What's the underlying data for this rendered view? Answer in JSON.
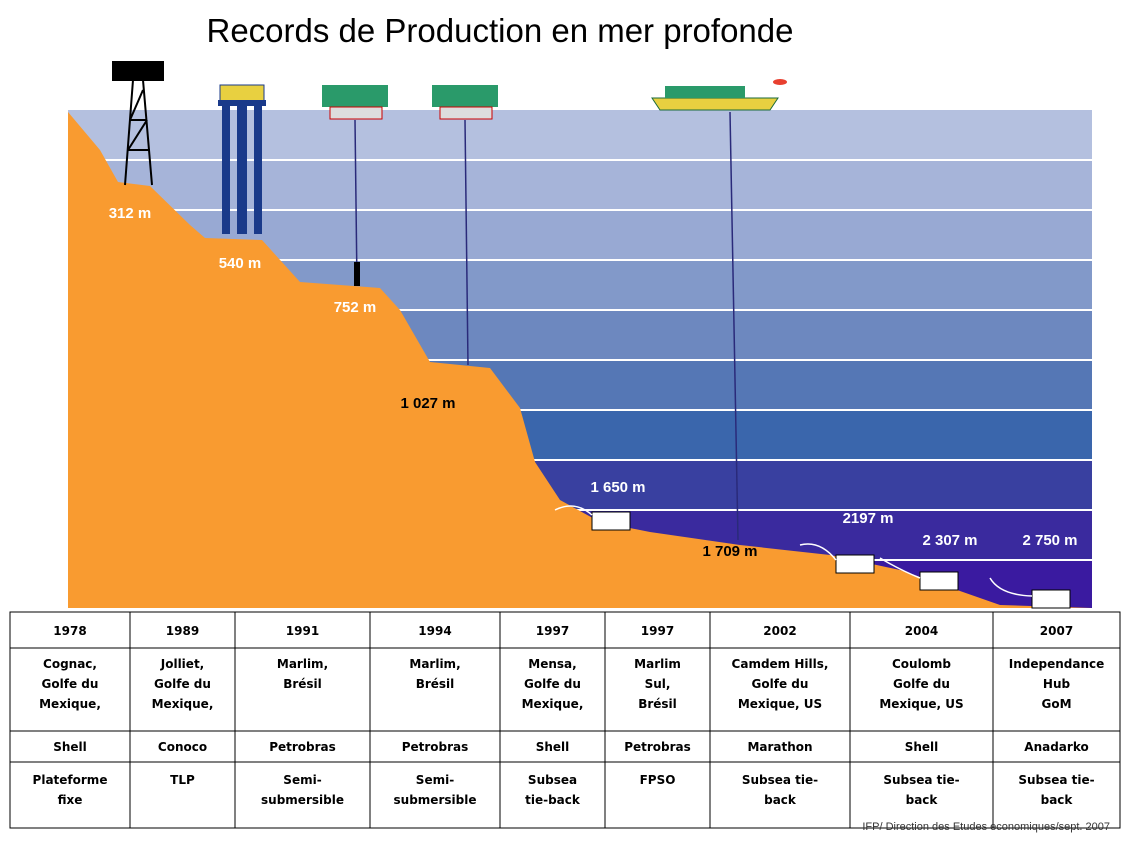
{
  "title": "Records de Production en mer profonde",
  "depths": [
    {
      "label": "312 m",
      "color": "white"
    },
    {
      "label": "540 m",
      "color": "white"
    },
    {
      "label": "752 m",
      "color": "white"
    },
    {
      "label": "1 027 m",
      "color": "black"
    },
    {
      "label": "1 650 m",
      "color": "white"
    },
    {
      "label": "1 709 m",
      "color": "black"
    },
    {
      "label": "2197 m",
      "color": "white"
    },
    {
      "label": "2 307 m",
      "color": "white"
    },
    {
      "label": "2 750 m",
      "color": "white"
    }
  ],
  "table": {
    "columns": [
      {
        "year": "1978",
        "location": [
          "Cognac,",
          "Golfe du",
          "Mexique,"
        ],
        "company": "Shell",
        "type": [
          "Plateforme",
          "fixe"
        ]
      },
      {
        "year": "1989",
        "location": [
          "Jolliet,",
          "Golfe du",
          "Mexique,"
        ],
        "company": "Conoco",
        "type": [
          "TLP"
        ]
      },
      {
        "year": "1991",
        "location": [
          "Marlim,",
          "Brésil"
        ],
        "company": "Petrobras",
        "type": [
          "Semi-",
          "submersible"
        ]
      },
      {
        "year": "1994",
        "location": [
          "Marlim,",
          "Brésil"
        ],
        "company": "Petrobras",
        "type": [
          "Semi-",
          "submersible"
        ]
      },
      {
        "year": "1997",
        "location": [
          "Mensa,",
          "Golfe du",
          "Mexique,"
        ],
        "company": "Shell",
        "type": [
          "Subsea",
          "tie-back"
        ]
      },
      {
        "year": "1997",
        "location": [
          "Marlim",
          "Sul,",
          "Brésil"
        ],
        "company": "Petrobras",
        "type": [
          "FPSO"
        ]
      },
      {
        "year": "2002",
        "location": [
          "Camdem Hills,",
          "Golfe du",
          "Mexique, US"
        ],
        "company": "Marathon",
        "type": [
          "Subsea tie-",
          "back"
        ]
      },
      {
        "year": "2004",
        "location": [
          "Coulomb",
          "Golfe du",
          "Mexique, US"
        ],
        "company": "Shell",
        "type": [
          "Subsea tie-",
          "back"
        ]
      },
      {
        "year": "2007",
        "location": [
          "Independance",
          "Hub",
          "GoM"
        ],
        "company": "Anadarko",
        "type": [
          "Subsea tie-",
          "back"
        ]
      }
    ]
  },
  "source": "IFP/ Direction des Etudes economiques/sept. 2007"
}
